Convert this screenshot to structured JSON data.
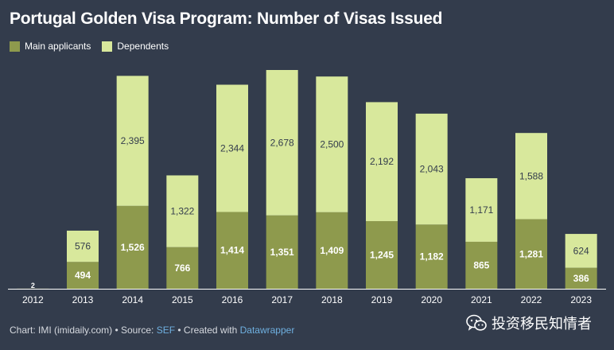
{
  "header": {
    "title": "Portugal Golden Visa Program: Number of Visas Issued"
  },
  "footer": {
    "prefix": "Chart: IMI (imidaily.com) • Source: ",
    "source": "SEF",
    "middle": " • Created with ",
    "tool": "Datawrapper"
  },
  "brand": {
    "name": "投资移民知情者",
    "icon": "wechat-icon"
  },
  "colors": {
    "background": "#333c4c",
    "main": "#8e9a4d",
    "dependents": "#d8e89c",
    "link": "#6fb0e0"
  },
  "chart_data": {
    "type": "bar",
    "stacked": true,
    "categories": [
      "2012",
      "2013",
      "2014",
      "2015",
      "2016",
      "2017",
      "2018",
      "2019",
      "2020",
      "2021",
      "2022",
      "2023"
    ],
    "series": [
      {
        "name": "Main applicants",
        "values": [
          2,
          494,
          1526,
          766,
          1414,
          1351,
          1409,
          1245,
          1182,
          865,
          1281,
          386
        ],
        "labels": [
          "2",
          "494",
          "1,526",
          "766",
          "1,414",
          "1,351",
          "1,409",
          "1,245",
          "1,182",
          "865",
          "1,281",
          "386"
        ]
      },
      {
        "name": "Dependents",
        "values": [
          0,
          576,
          2395,
          1322,
          2344,
          2678,
          2500,
          2192,
          2043,
          1171,
          1588,
          624
        ],
        "labels": [
          "",
          "576",
          "2,395",
          "1,322",
          "2,344",
          "2,678",
          "2,500",
          "2,192",
          "2,043",
          "1,171",
          "1,588",
          "624"
        ]
      }
    ],
    "ylim": [
      0,
      4029
    ],
    "legend": "top-left",
    "grid": false
  }
}
